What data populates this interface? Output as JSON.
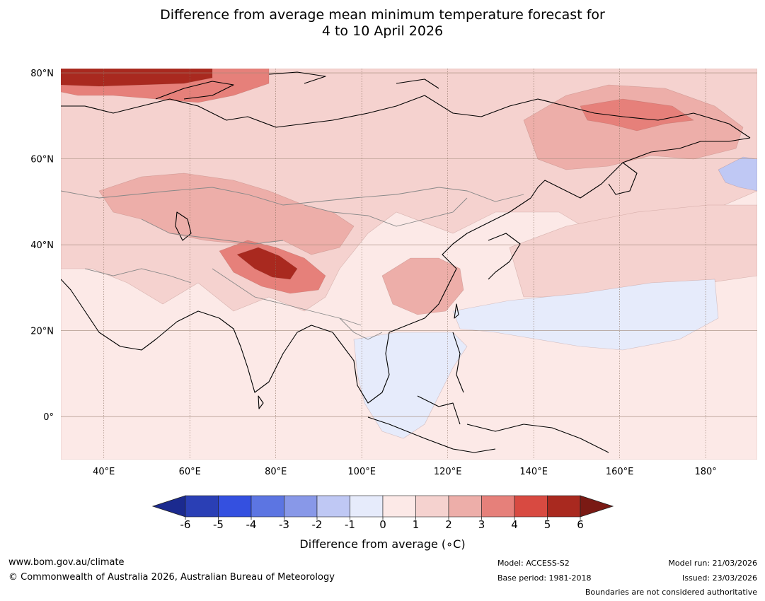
{
  "title": {
    "line1": "Difference from average mean minimum temperature forecast for",
    "line2": "4 to 10 April 2026"
  },
  "map": {
    "lat_labels": [
      "80°N",
      "60°N",
      "40°N",
      "20°N",
      "0°"
    ],
    "lon_labels": [
      "40°E",
      "60°E",
      "80°E",
      "100°E",
      "120°E",
      "140°E",
      "160°E",
      "180°"
    ],
    "extent": {
      "lon_min": 30,
      "lon_max": 192,
      "lat_min": -10,
      "lat_max": 81
    },
    "lats": [
      80,
      60,
      40,
      20,
      0
    ],
    "lons": [
      40,
      60,
      80,
      100,
      120,
      140,
      160,
      180
    ],
    "anomaly_regions": [
      {
        "name": "background",
        "value": 0.5
      },
      {
        "name": "north-siberia",
        "value": 1.5
      },
      {
        "name": "arctic-west",
        "value": 3.5
      },
      {
        "name": "arctic-west-core",
        "value": 5.5
      },
      {
        "name": "central-asia",
        "value": 2.5
      },
      {
        "name": "tibet",
        "value": 3.5
      },
      {
        "name": "tibet-core",
        "value": 5.5
      },
      {
        "name": "east-siberia",
        "value": 2.5
      },
      {
        "name": "east-siberia-core",
        "value": 3.5
      },
      {
        "name": "china-south",
        "value": 2.5
      },
      {
        "name": "north-pacific",
        "value": 1.5
      },
      {
        "name": "pacific-cool",
        "value": -0.5
      },
      {
        "name": "maritime-cool",
        "value": -0.5
      },
      {
        "name": "bering-cool",
        "value": -1.5
      }
    ]
  },
  "colorbar": {
    "ticks": [
      "-6",
      "-5",
      "-4",
      "-3",
      "-2",
      "-1",
      "0",
      "1",
      "2",
      "3",
      "4",
      "5",
      "6"
    ],
    "colors": [
      "#1b2a8f",
      "#2a3fb5",
      "#3450e0",
      "#5c75e2",
      "#8898e8",
      "#bfc8f4",
      "#e6ebfb",
      "#fce9e7",
      "#f5d2cf",
      "#edaea9",
      "#e6807a",
      "#d84a41",
      "#a9291f",
      "#7a1a14"
    ],
    "label": "Difference from average (∘C)"
  },
  "footer": {
    "website": "www.bom.gov.au/climate",
    "copyright": "© Commonwealth of Australia 2026, Australian Bureau of Meteorology",
    "model": "Model: ACCESS-S2",
    "base_period": "Base period: 1981-2018",
    "model_run": "Model run: 21/03/2026",
    "issued": "Issued: 23/03/2026",
    "boundaries": "Boundaries are not considered authoritative"
  }
}
